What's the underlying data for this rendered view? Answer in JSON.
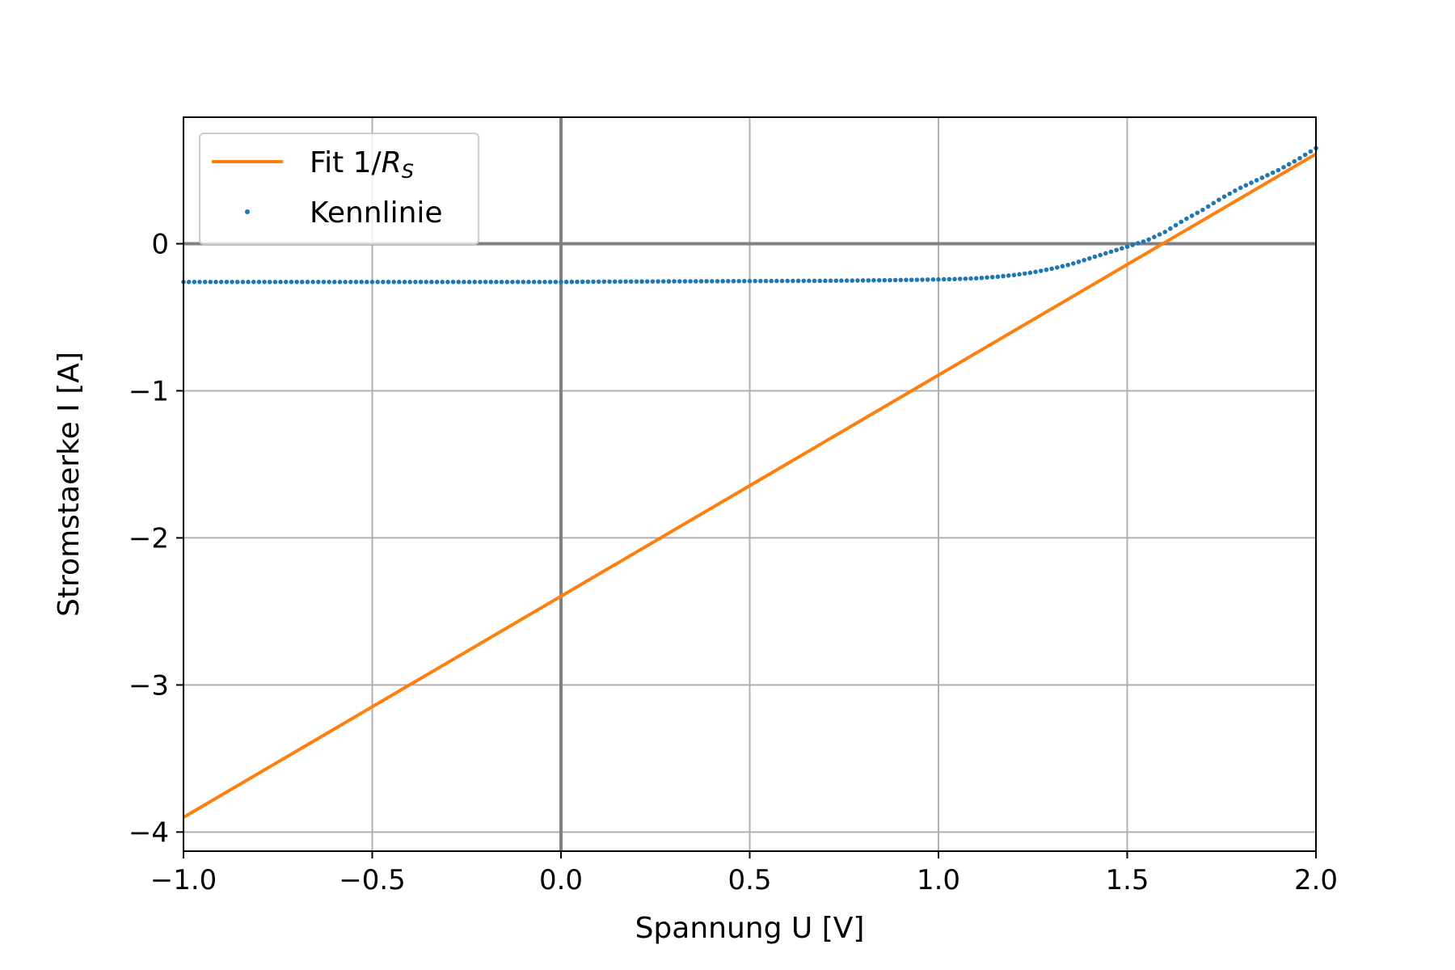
{
  "chart_data": {
    "type": "line",
    "xlabel": "Spannung U [V]",
    "ylabel": "Stromstaerke I [A]",
    "xlim": [
      -1.0,
      2.0
    ],
    "ylim": [
      -4.13,
      0.86
    ],
    "x_ticks": [
      -1.0,
      -0.5,
      0.0,
      0.5,
      1.0,
      1.5,
      2.0
    ],
    "x_tick_labels": [
      "−1.0",
      "−0.5",
      "0.0",
      "0.5",
      "1.0",
      "1.5",
      "2.0"
    ],
    "y_ticks": [
      -4,
      -3,
      -2,
      -1,
      0
    ],
    "y_tick_labels": [
      "−4",
      "−3",
      "−2",
      "−1",
      "0"
    ],
    "grid": true,
    "zero_lines": true,
    "legend": {
      "placement": "top-left"
    },
    "series": [
      {
        "name": "Fit 1/R_S",
        "legend_label_main": "Fit 1/",
        "legend_label_italic": "R",
        "legend_label_sub": "S",
        "kind": "line",
        "color": "#ff7f0e",
        "x": [
          -1.0,
          2.0
        ],
        "y": [
          -3.9,
          0.61
        ]
      },
      {
        "name": "Kennlinie",
        "kind": "markers",
        "color": "#1f77b4",
        "x": [
          -1.0,
          -0.9,
          -0.8,
          -0.7,
          -0.6,
          -0.5,
          -0.4,
          -0.3,
          -0.2,
          -0.1,
          0.0,
          0.1,
          0.2,
          0.3,
          0.4,
          0.5,
          0.6,
          0.7,
          0.8,
          0.9,
          1.0,
          1.05,
          1.1,
          1.15,
          1.2,
          1.25,
          1.3,
          1.35,
          1.4,
          1.45,
          1.5,
          1.55,
          1.6,
          1.65,
          1.7,
          1.75,
          1.8,
          1.85,
          1.9,
          1.95,
          2.0
        ],
        "y": [
          -0.26,
          -0.26,
          -0.26,
          -0.26,
          -0.26,
          -0.26,
          -0.26,
          -0.26,
          -0.26,
          -0.26,
          -0.26,
          -0.258,
          -0.257,
          -0.256,
          -0.255,
          -0.254,
          -0.253,
          -0.252,
          -0.25,
          -0.247,
          -0.243,
          -0.24,
          -0.235,
          -0.226,
          -0.213,
          -0.195,
          -0.17,
          -0.14,
          -0.1,
          -0.06,
          -0.02,
          0.02,
          0.08,
          0.16,
          0.23,
          0.31,
          0.38,
          0.44,
          0.5,
          0.57,
          0.65
        ]
      }
    ]
  }
}
